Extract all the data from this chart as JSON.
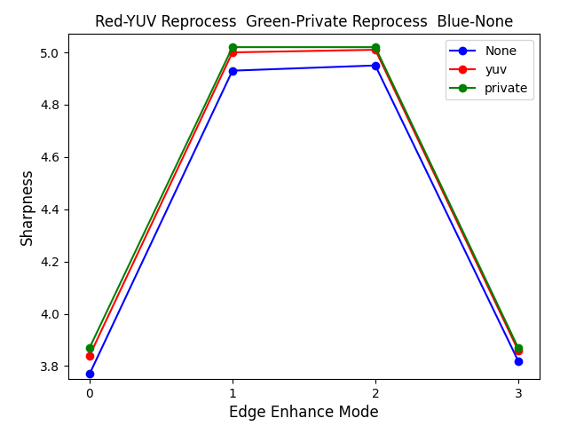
{
  "title": "Red-YUV Reprocess  Green-Private Reprocess  Blue-None",
  "xlabel": "Edge Enhance Mode",
  "ylabel": "Sharpness",
  "x": [
    0,
    1,
    2,
    3
  ],
  "series": [
    {
      "label": "None",
      "color": "blue",
      "values": [
        3.77,
        4.93,
        4.95,
        3.82
      ]
    },
    {
      "label": "yuv",
      "color": "red",
      "values": [
        3.84,
        5.0,
        5.01,
        3.86
      ]
    },
    {
      "label": "private",
      "color": "green",
      "values": [
        3.87,
        5.02,
        5.02,
        3.87
      ]
    }
  ],
  "xlim": [
    -0.15,
    3.15
  ],
  "ylim": [
    3.75,
    5.07
  ],
  "yticks": [
    3.8,
    4.0,
    4.2,
    4.4,
    4.6,
    4.8,
    5.0
  ],
  "xticks": [
    0,
    1,
    2,
    3
  ],
  "legend_loc": "upper right",
  "marker": "o",
  "title_fontsize": 12,
  "label_fontsize": 12,
  "legend_fontsize": 10,
  "linewidth": 1.5,
  "markersize": 6
}
